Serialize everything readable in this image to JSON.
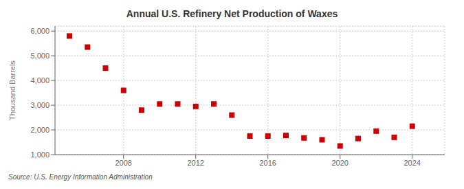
{
  "chart_data": {
    "type": "scatter",
    "title": "Annual U.S. Refinery Net Production of Waxes",
    "ylabel": "Thousand Barrels",
    "annotations": [
      "Source: U.S. Energy Information Administration"
    ],
    "x": [
      2005,
      2006,
      2007,
      2008,
      2009,
      2010,
      2011,
      2012,
      2013,
      2014,
      2015,
      2016,
      2017,
      2018,
      2019,
      2020,
      2021,
      2022,
      2023,
      2024
    ],
    "values": [
      5800,
      5350,
      4500,
      3600,
      2800,
      3050,
      3050,
      2950,
      3050,
      2600,
      1750,
      1750,
      1775,
      1675,
      1600,
      1350,
      1650,
      1950,
      1700,
      2150
    ],
    "color": "#cc0000",
    "marker": "square",
    "xlim": [
      2004.2,
      2025.8
    ],
    "xticks": [
      2008,
      2012,
      2016,
      2020,
      2024
    ],
    "ylim": [
      1000,
      6200
    ],
    "yticks": [
      {
        "value": 1000,
        "label": "1,000"
      },
      {
        "value": 2000,
        "label": "2,000"
      },
      {
        "value": 3000,
        "label": "3,000"
      },
      {
        "value": 4000,
        "label": "4,000"
      },
      {
        "value": 5000,
        "label": "5,000"
      },
      {
        "value": 6000,
        "label": "6,000"
      }
    ],
    "grid": true
  }
}
